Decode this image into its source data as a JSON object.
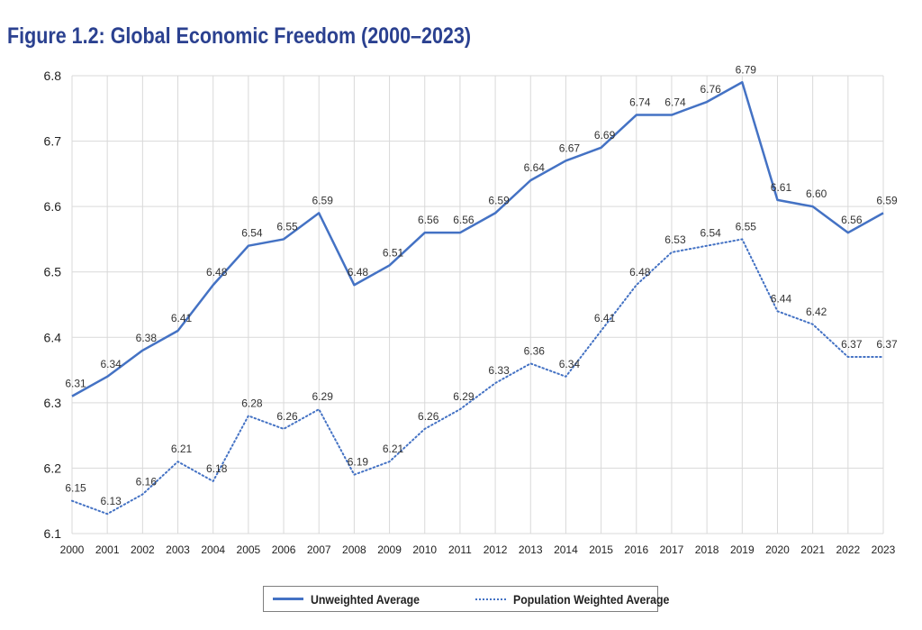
{
  "title": "Figure 1.2: Global Economic Freedom (2000–2023)",
  "chart_data": {
    "type": "line",
    "title": "Figure 1.2: Global Economic Freedom (2000–2023)",
    "xlabel": "",
    "ylabel": "",
    "x": [
      2000,
      2001,
      2002,
      2003,
      2004,
      2005,
      2006,
      2007,
      2008,
      2009,
      2010,
      2011,
      2012,
      2013,
      2014,
      2015,
      2016,
      2017,
      2018,
      2019,
      2020,
      2021,
      2022,
      2023
    ],
    "ylim": [
      6.1,
      6.8
    ],
    "yticks": [
      "6.1",
      "6.2",
      "6.3",
      "6.4",
      "6.5",
      "6.6",
      "6.7",
      "6.8"
    ],
    "grid": true,
    "legend_position": "bottom",
    "series": [
      {
        "name": "Unweighted Average",
        "style": "solid",
        "color": "#4472c4",
        "values": [
          6.31,
          6.34,
          6.38,
          6.41,
          6.48,
          6.54,
          6.55,
          6.59,
          6.48,
          6.51,
          6.56,
          6.56,
          6.59,
          6.64,
          6.67,
          6.69,
          6.74,
          6.74,
          6.76,
          6.79,
          6.61,
          6.6,
          6.56,
          6.59
        ]
      },
      {
        "name": "Population Weighted Average",
        "style": "dotted",
        "color": "#4472c4",
        "values": [
          6.15,
          6.13,
          6.16,
          6.21,
          6.18,
          6.28,
          6.26,
          6.29,
          6.19,
          6.21,
          6.26,
          6.29,
          6.33,
          6.36,
          6.34,
          6.41,
          6.48,
          6.53,
          6.54,
          6.55,
          6.44,
          6.42,
          6.37,
          6.37
        ]
      }
    ]
  }
}
